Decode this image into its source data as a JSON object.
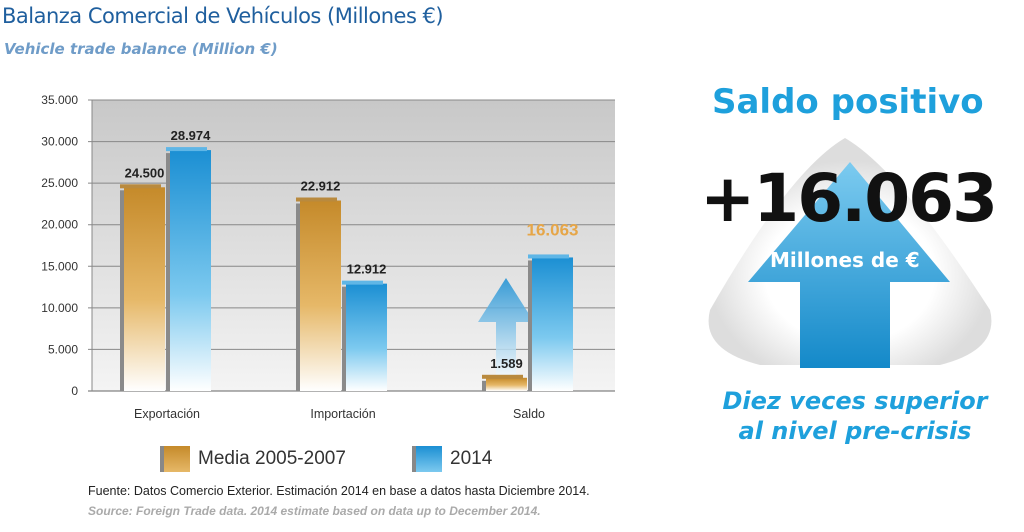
{
  "chart_data": {
    "type": "bar",
    "title": "Balanza Comercial de Vehículos (Millones €)",
    "subtitle": "Vehicle trade balance (Million €)",
    "categories": [
      "Exportación",
      "Importación",
      "Saldo"
    ],
    "series": [
      {
        "name": "Media 2005-2007",
        "color": "#d19a3c",
        "values": [
          24500,
          22912,
          1589
        ],
        "labels": [
          "24.500",
          "22.912",
          "1.589"
        ]
      },
      {
        "name": "2014",
        "color": "#1f9ad8",
        "values": [
          28974,
          12912,
          16063
        ],
        "labels": [
          "28.974",
          "12.912",
          "16.063"
        ]
      }
    ],
    "ylim": [
      0,
      35000
    ],
    "yticks": [
      "0",
      "5.000",
      "10.000",
      "15.000",
      "20.000",
      "25.000",
      "30.000",
      "35.000"
    ],
    "grid": true,
    "legend": "bottom"
  },
  "callout": {
    "heading": "Saldo positivo",
    "value": "+16.063",
    "unit": "Millones de €",
    "note_line1": "Diez veces superior",
    "note_line2": "al  nivel pre-crisis"
  },
  "source": {
    "es": "Fuente: Datos Comercio Exterior. Estimación 2014 en base a datos hasta Diciembre 2014.",
    "en": "Source: Foreign Trade data. 2014 estimate based on data up to December 2014."
  }
}
